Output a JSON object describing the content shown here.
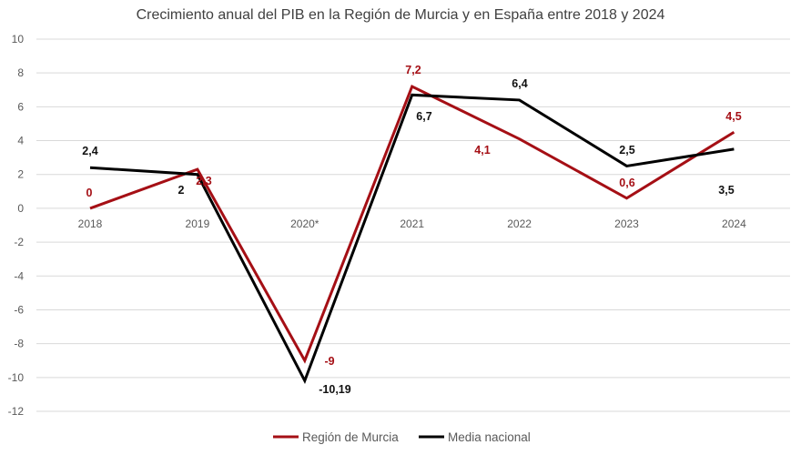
{
  "chart_data": {
    "type": "line",
    "title": "Crecimiento anual del PIB en la Región de Murcia y en España entre 2018 y 2024",
    "categories": [
      "2018",
      "2019",
      "2020*",
      "2021",
      "2022",
      "2023",
      "2024"
    ],
    "ylim": [
      -12,
      10
    ],
    "yticks": [
      10,
      8,
      6,
      4,
      2,
      0,
      -2,
      -4,
      -6,
      -8,
      -10,
      -12
    ],
    "grid": true,
    "legend_position": "bottom",
    "series": [
      {
        "name": "Región de Murcia",
        "color": "#a50f15",
        "values": [
          0,
          2.3,
          -9,
          7.2,
          4.1,
          0.6,
          4.5
        ],
        "labels": [
          "0",
          "2,3",
          "-9",
          "7,2",
          "4,1",
          "0,6",
          "4,5"
        ]
      },
      {
        "name": "Media nacional",
        "color": "#000000",
        "values": [
          2.4,
          2,
          -10.19,
          6.7,
          6.4,
          2.5,
          3.5
        ],
        "labels": [
          "2,4",
          "2",
          "-10,19",
          "6,7",
          "6,4",
          "2,5",
          "3,5"
        ]
      }
    ]
  }
}
